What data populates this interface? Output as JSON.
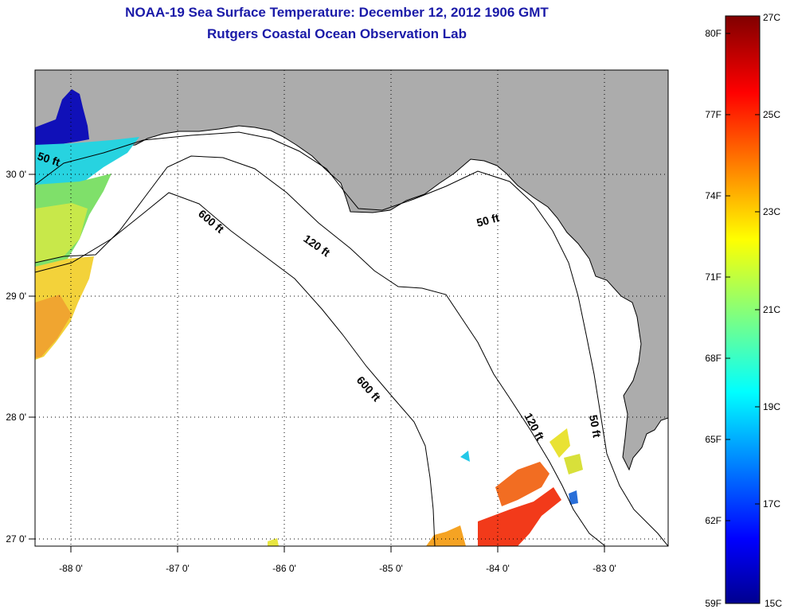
{
  "title": {
    "line1": "NOAA-19 Sea Surface Temperature:  December 12, 2012 1906 GMT",
    "line2": "Rutgers Coastal Ocean Observation Lab"
  },
  "map": {
    "x_ticks": [
      "-88 0'",
      "-87 0'",
      "-86 0'",
      "-85 0'",
      "-84 0'",
      "-83 0'"
    ],
    "y_ticks": [
      "30 0'",
      "29 0'",
      "28 0'",
      "27 0'"
    ],
    "contour_labels": [
      "50 ft",
      "600 ft",
      "120 ft",
      "50 ft",
      "600 ft",
      "120 ft",
      "50 ft"
    ],
    "colors": {
      "land": "#acacac",
      "water": "#ffffff",
      "coast": "#000000"
    }
  },
  "colorbar": {
    "fahrenheit": [
      "80F",
      "77F",
      "74F",
      "71F",
      "68F",
      "65F",
      "62F",
      "59F"
    ],
    "celsius": [
      "27C",
      "25C",
      "23C",
      "21C",
      "19C",
      "17C",
      "15C"
    ]
  }
}
